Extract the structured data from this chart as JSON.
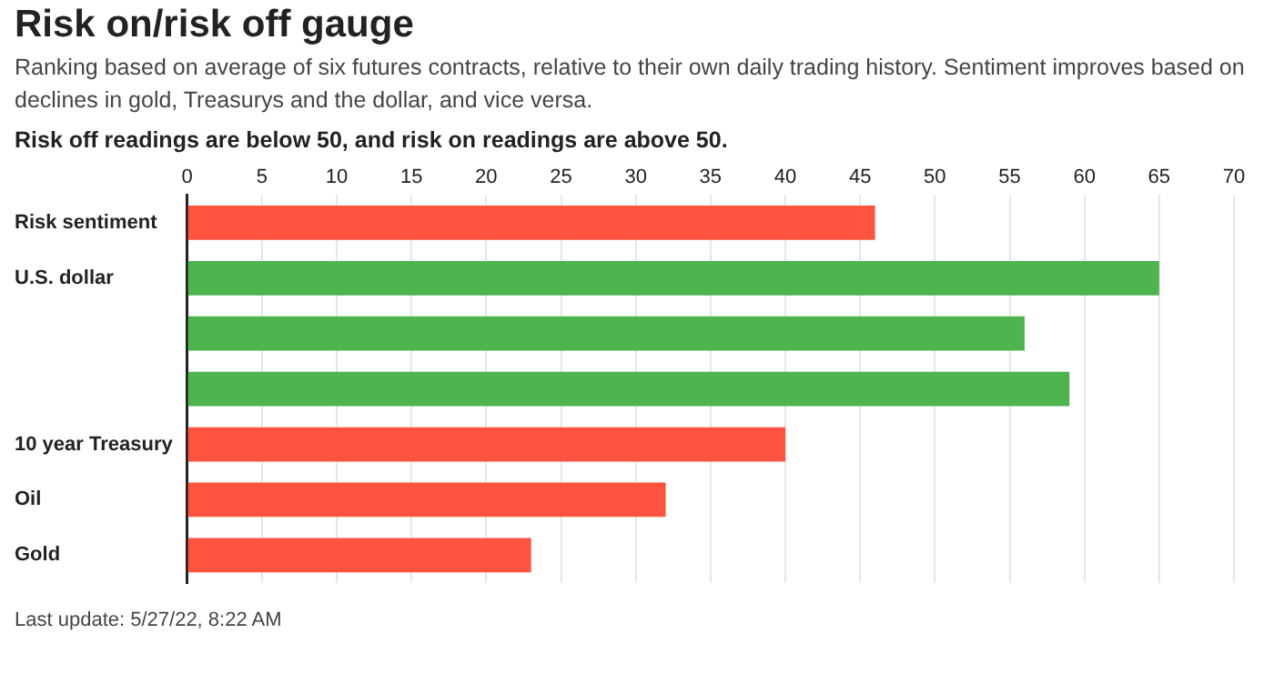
{
  "chart_data": {
    "type": "bar",
    "orientation": "horizontal",
    "title": "Risk on/risk off gauge",
    "subtitle": "Ranking based on average of six futures contracts, relative to their own daily trading history. Sentiment improves based on declines in gold, Treasurys and the dollar, and vice versa.",
    "annotations": [
      "Risk off readings are below 50, and risk on readings are above 50.",
      "Last update: 5/27/22, 8:22 AM"
    ],
    "categories": [
      "Risk sentiment",
      "U.S. dollar",
      null,
      null,
      "10 year Treasury",
      "Oil",
      "Gold"
    ],
    "values": [
      46,
      65,
      56,
      59,
      40,
      32,
      23
    ],
    "colors": [
      "#ff533f",
      "#4db44e",
      "#4db44e",
      "#4db44e",
      "#ff533f",
      "#ff533f",
      "#ff533f"
    ],
    "xlim": [
      0,
      70
    ],
    "xticks": [
      0,
      5,
      10,
      15,
      20,
      25,
      30,
      35,
      40,
      45,
      50,
      55,
      60,
      65,
      70
    ],
    "grid": "x",
    "legend": false
  }
}
